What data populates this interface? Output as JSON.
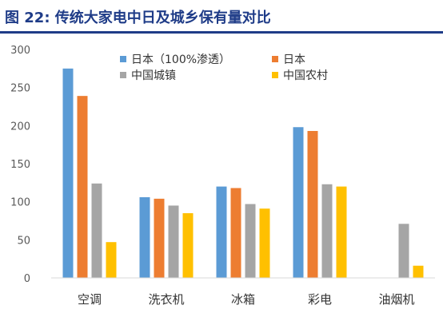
{
  "page": {
    "title": "图 22: 传统大家电中日及城乡保有量对比"
  },
  "chart_data": {
    "type": "bar",
    "title": "",
    "xlabel": "",
    "ylabel": "",
    "ylim": [
      0,
      300
    ],
    "yticks": [
      0,
      50,
      100,
      150,
      200,
      250,
      300
    ],
    "grid": false,
    "legend_position": "top",
    "categories": [
      "空调",
      "洗衣机",
      "冰箱",
      "彩电",
      "油烟机"
    ],
    "series": [
      {
        "name": "日本（100%渗透）",
        "color": "#5B9BD5",
        "values": [
          275,
          106,
          120,
          198,
          null
        ]
      },
      {
        "name": "日本",
        "color": "#ED7D31",
        "values": [
          239,
          104,
          118,
          193,
          null
        ]
      },
      {
        "name": "中国城镇",
        "color": "#A5A5A5",
        "values": [
          124,
          95,
          97,
          123,
          71
        ]
      },
      {
        "name": "中国农村",
        "color": "#FFC000",
        "values": [
          47,
          85,
          91,
          120,
          16
        ]
      }
    ]
  }
}
